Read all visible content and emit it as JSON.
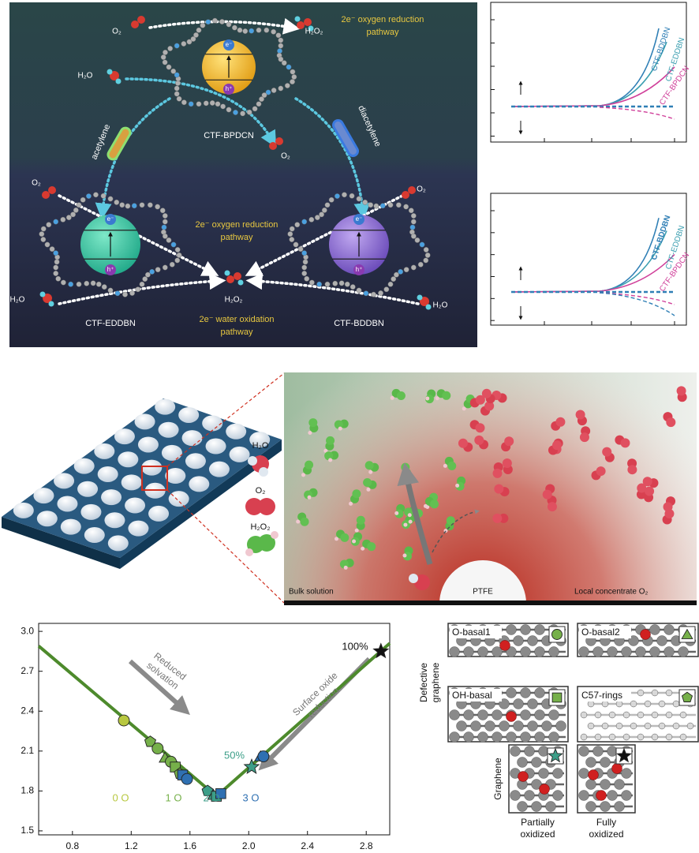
{
  "pathway_diagram": {
    "orr_top": [
      "2e⁻ oxygen reduction",
      "pathway"
    ],
    "orr_bottom": [
      "2e⁻ oxygen reduction",
      "pathway"
    ],
    "wor_bottom": [
      "2e⁻ water oxidation",
      "pathway"
    ],
    "linkers": [
      "acetylene",
      "diacetylene"
    ],
    "frameworks": [
      {
        "name": "CTF-BPDCN",
        "electron": "e⁻",
        "hole": "h⁺"
      },
      {
        "name": "CTF-EDDBN",
        "electron": "e⁻",
        "hole": "h⁺"
      },
      {
        "name": "CTF-BDDBN",
        "electron": "e⁻",
        "hole": "h⁺"
      }
    ],
    "molecules": [
      "O₂",
      "H₂O₂",
      "H₂O",
      "O₂",
      "O₂",
      "O₂",
      "H₂O₂",
      "H₂O",
      "H₂O"
    ]
  },
  "activity_plots": [
    {
      "labels": [
        "CTF-BDDBN",
        "CTF-EDDBN",
        "CTF-BPDCN"
      ]
    },
    {
      "labels": [
        "CTF-BDDBN",
        "CTF-EDDBN",
        "CTF-BPDCN"
      ]
    }
  ],
  "interface_illustration": {
    "legend": [
      "H₂O",
      "O₂",
      "H₂O₂"
    ],
    "regions": [
      "Bulk solution",
      "PTFE",
      "Local concentrate O₂"
    ]
  },
  "chart_data": {
    "type": "scatter",
    "xlim": [
      0.57,
      2.96
    ],
    "ylim": [
      1.47,
      3.06
    ],
    "xticks": [
      0.8,
      1.2,
      1.6,
      {
        "value": 2,
        "label": "2.0"
      },
      2.4,
      2.8
    ],
    "yticks": [
      {
        "value": 3,
        "label": "3.0"
      },
      2.7,
      2.4,
      2.1,
      1.8,
      1.5
    ],
    "series": [
      {
        "color": "#4d8a2c",
        "line": true,
        "x": [
          0.57,
          1.78,
          2.96
        ],
        "values": [
          2.89,
          1.76,
          2.91
        ]
      },
      {
        "x": [
          1.15,
          1.33,
          1.38,
          1.43,
          1.47,
          1.5,
          1.53,
          1.55,
          1.58,
          1.72,
          1.76,
          1.78,
          1.81,
          2.02,
          2.08,
          2.1,
          2.9
        ],
        "values": [
          2.33,
          2.17,
          2.12,
          2.05,
          2.02,
          1.98,
          1.93,
          1.92,
          1.89,
          1.8,
          1.77,
          1.76,
          1.78,
          1.98,
          2.06,
          2.06,
          2.85
        ],
        "markers": [
          "circle",
          "pentagon",
          "circle",
          "triangle",
          "circle",
          "square",
          "pentagon",
          "square",
          "circle",
          "pentagon",
          "triangle",
          "square",
          "square",
          "star",
          "triangle",
          "circle",
          "star"
        ],
        "colors": [
          "#b8c840",
          "#76b04a",
          "#76b04a",
          "#76b04a",
          "#76b04a",
          "#76b04a",
          "#76b04a",
          "#2f70b2",
          "#2f70b2",
          "#3c9e88",
          "#3c9e88",
          "#3c9e88",
          "#2f70b2",
          "#3c9e88",
          "#2f70b2",
          "#2f70b2",
          "#111111"
        ]
      }
    ],
    "annotations": [
      {
        "text": [
          "Reduced",
          "solvation"
        ],
        "color": "#777777"
      },
      {
        "text": [
          "Surface oxide",
          "reduction"
        ],
        "color": "#777777"
      },
      {
        "text": "0 O",
        "color": "#b8c840"
      },
      {
        "text": "1 O",
        "color": "#76b04a"
      },
      {
        "text": "2 O",
        "color": "#3c9e88"
      },
      {
        "text": "3 O",
        "color": "#2f70b2"
      },
      {
        "text": "50%",
        "color": "#3c9e88"
      },
      {
        "text": "100%",
        "color": "#111111"
      }
    ]
  },
  "structures": {
    "group_labels": [
      [
        "Defective",
        "graphene"
      ],
      "Graphene"
    ],
    "models": [
      {
        "label": "O-basal1",
        "marker": "circle",
        "color": "#76b04a"
      },
      {
        "label": "O-basal2",
        "marker": "triangle",
        "color": "#76b04a"
      },
      {
        "label": "OH-basal",
        "marker": "square",
        "color": "#76b04a"
      },
      {
        "label": "C57-rings",
        "marker": "pentagon",
        "color": "#76b04a"
      },
      {
        "label": [
          "Partially",
          "oxidized"
        ],
        "marker": "star",
        "color": "#3c9e88"
      },
      {
        "label": [
          "Fully",
          "oxidized"
        ],
        "marker": "star",
        "color": "#111111"
      }
    ]
  }
}
